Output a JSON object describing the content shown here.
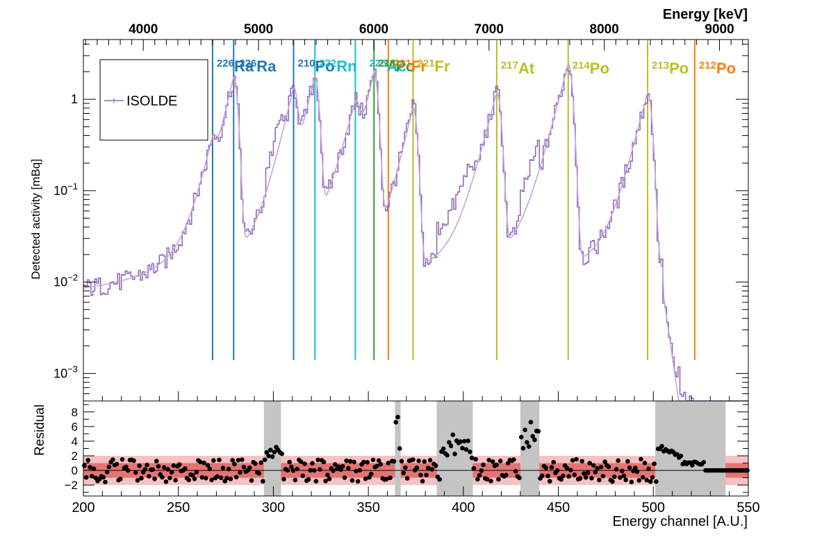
{
  "chart_data": {
    "type": "line",
    "top_axis": {
      "label": "Energy [keV]",
      "ticks": [
        4000,
        5000,
        6000,
        7000,
        8000,
        9000
      ],
      "range": [
        3480,
        9250
      ]
    },
    "main": {
      "ylabel": "Detected activity [mBq]",
      "yscale": "log",
      "ylim": [
        0.0005,
        4.5
      ],
      "ytick_labels": [
        {
          "value": 0.001,
          "base": "10",
          "exp": "−3"
        },
        {
          "value": 0.01,
          "base": "10",
          "exp": "−2"
        },
        {
          "value": 0.1,
          "base": "10",
          "exp": "−1"
        },
        {
          "value": 1,
          "base": "1",
          "exp": ""
        }
      ],
      "legend": {
        "entries": [
          "ISOLDE"
        ],
        "placement": "top-left"
      },
      "series": [
        {
          "name": "ISOLDE",
          "style": "histogram",
          "color": "#8c63b5"
        },
        {
          "name": "",
          "style": "fit",
          "color": "#c1a6d9"
        }
      ],
      "peaks": [
        {
          "energy": 4601,
          "amp": 0.19,
          "sigma": 2.2
        },
        {
          "energy": 4784,
          "amp": 1.75,
          "sigma": 2.2
        },
        {
          "energy": 5304,
          "amp": 1.15,
          "sigma": 2.2
        },
        {
          "energy": 5489,
          "amp": 1.78,
          "sigma": 2.2
        },
        {
          "energy": 5840,
          "amp": 0.68,
          "sigma": 2.6
        },
        {
          "energy": 6002,
          "amp": 1.95,
          "sigma": 2.2
        },
        {
          "energy": 6341,
          "amp": 0.82,
          "sigma": 2.2
        },
        {
          "energy": 7067,
          "amp": 1.18,
          "sigma": 2.4
        },
        {
          "energy": 7687,
          "amp": 2.45,
          "sigma": 2.4
        },
        {
          "energy": 8376,
          "amp": 1.18,
          "sigma": 2.4
        }
      ],
      "markers": [
        {
          "energy": 4601,
          "color": "#1f77b4"
        },
        {
          "energy": 4784,
          "color": "#1f77b4"
        },
        {
          "energy": 5304,
          "color": "#1f77b4"
        },
        {
          "energy": 5489,
          "color": "#17becf"
        },
        {
          "energy": 5840,
          "color": "#17becf"
        },
        {
          "energy": 6002,
          "color": "#2ca02c"
        },
        {
          "energy": 6126,
          "color": "#ff7f0e"
        },
        {
          "energy": 6341,
          "color": "#bcbd22"
        },
        {
          "energy": 7067,
          "color": "#bcbd22"
        },
        {
          "energy": 7687,
          "color": "#bcbd22"
        },
        {
          "energy": 8376,
          "color": "#bcbd22"
        },
        {
          "energy": 8785,
          "color": "#ff7f0e"
        }
      ],
      "annotations": [
        {
          "mass": "226",
          "symbol": "Ra",
          "energy": 4601,
          "color": "#1f77b4"
        },
        {
          "mass": "226",
          "symbol": "Ra",
          "energy": 4784,
          "color": "#1f77b4"
        },
        {
          "mass": "210",
          "symbol": "Po",
          "energy": 5304,
          "color": "#1f77b4"
        },
        {
          "mass": "222",
          "symbol": "Rn",
          "energy": 5489,
          "color": "#17becf"
        },
        {
          "mass": "225",
          "symbol": "Ac",
          "energy": 5840,
          "color": "#17becf"
        },
        {
          "mass": "218",
          "symbol": "Po",
          "energy": 6002,
          "color": "#2ca02c"
        },
        {
          "mass": "221",
          "symbol": "Fr",
          "energy": 6126,
          "color": "#ff7f0e"
        },
        {
          "mass": "221",
          "symbol": "Fr",
          "energy": 6341,
          "color": "#bcbd22"
        },
        {
          "mass": "217",
          "symbol": "At",
          "energy": 7067,
          "color": "#bcbd22"
        },
        {
          "mass": "214",
          "symbol": "Po",
          "energy": 7687,
          "color": "#bcbd22"
        },
        {
          "mass": "213",
          "symbol": "Po",
          "energy": 8376,
          "color": "#bcbd22"
        },
        {
          "mass": "212",
          "symbol": "Po",
          "energy": 8785,
          "color": "#ff7f0e"
        }
      ]
    },
    "residual": {
      "ylabel": "Residual",
      "ylim": [
        -3.5,
        9.5
      ],
      "yticks": [
        -2,
        0,
        2,
        4,
        6,
        8
      ],
      "ytick_labels": [
        "−2",
        "0",
        "2",
        "4",
        "6",
        "8"
      ],
      "bands": [
        {
          "range": [
            -1,
            1
          ],
          "color": "#e06666"
        },
        {
          "range": [
            -2,
            2
          ],
          "color": "#f4b6b6"
        }
      ],
      "excluded_regions": [
        [
          295,
          304
        ],
        [
          364,
          367
        ],
        [
          386,
          405
        ],
        [
          430,
          440
        ],
        [
          501,
          538
        ]
      ],
      "marker_color": "#000000"
    },
    "x": {
      "label": "Energy channel [A.U.]",
      "ticks": [
        200,
        250,
        300,
        350,
        400,
        450,
        500,
        550
      ],
      "range": [
        200,
        550
      ]
    }
  }
}
